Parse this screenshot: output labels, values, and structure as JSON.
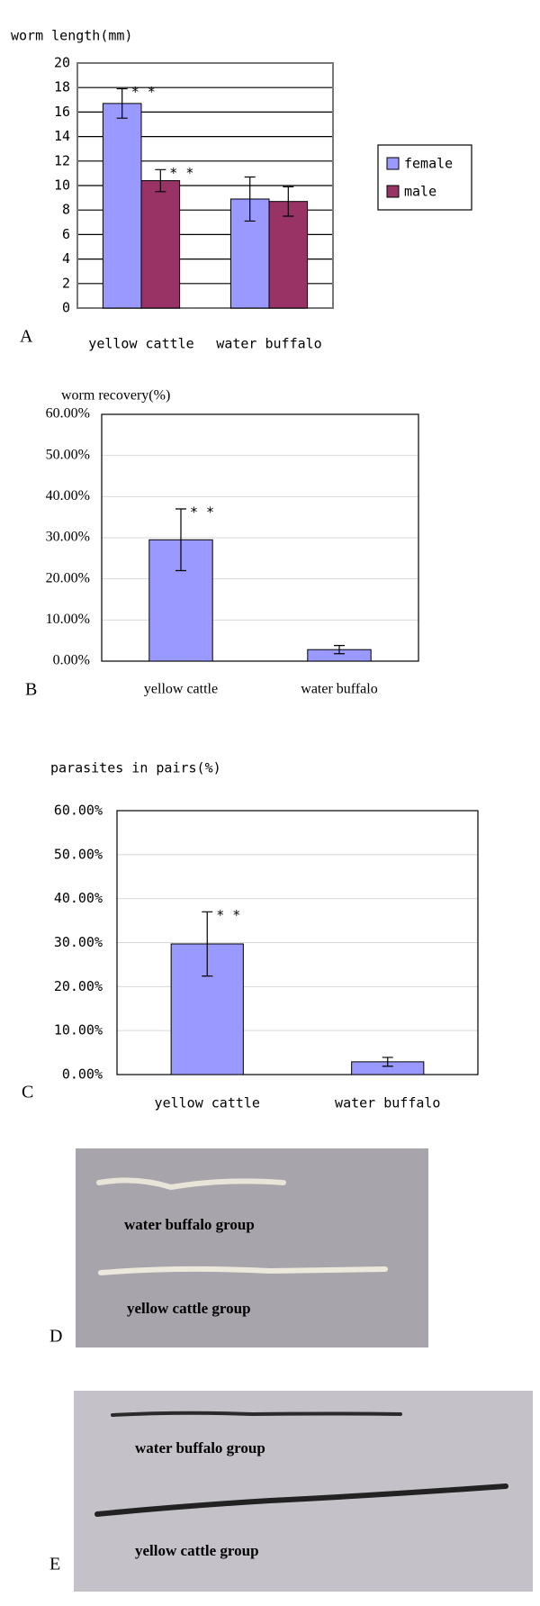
{
  "chart_data": [
    {
      "type": "bar",
      "panel": "A",
      "title": "worm length(mm)",
      "categories": [
        "yellow cattle",
        "water buffalo"
      ],
      "series": [
        {
          "name": "female",
          "color": "#9999ff",
          "values": [
            16.7,
            8.9
          ],
          "errors": [
            1.2,
            1.8
          ],
          "annotations": [
            "* *",
            null
          ]
        },
        {
          "name": "male",
          "color": "#993366",
          "values": [
            10.4,
            8.7
          ],
          "errors": [
            0.9,
            1.2
          ],
          "annotations": [
            "* *",
            null
          ]
        }
      ],
      "ylim": [
        0,
        20
      ],
      "yticks": [
        0,
        2,
        4,
        6,
        8,
        10,
        12,
        14,
        16,
        18,
        20
      ],
      "grid": true,
      "legend": "right"
    },
    {
      "type": "bar",
      "panel": "B",
      "title": "worm recovery(%)",
      "categories": [
        "yellow cattle",
        "water buffalo"
      ],
      "values": [
        29.5,
        2.8
      ],
      "errors": [
        7.5,
        1.0
      ],
      "annotations": [
        "* *",
        null
      ],
      "color": "#9999ff",
      "ylim": [
        0,
        60
      ],
      "yticks": [
        {
          "value": 0,
          "label": "0.00%"
        },
        {
          "value": 10,
          "label": "10.00%"
        },
        {
          "value": 20,
          "label": "20.00%"
        },
        {
          "value": 30,
          "label": "30.00%"
        },
        {
          "value": 40,
          "label": "40.00%"
        },
        {
          "value": 50,
          "label": "50.00%"
        },
        {
          "value": 60,
          "label": "60.00%"
        }
      ],
      "grid": true
    },
    {
      "type": "bar",
      "panel": "C",
      "title": "parasites in pairs(%)",
      "categories": [
        "yellow cattle",
        "water buffalo"
      ],
      "values": [
        29.7,
        2.9
      ],
      "errors": [
        7.3,
        1.0
      ],
      "annotations": [
        "* *",
        null
      ],
      "color": "#9999ff",
      "ylim": [
        0,
        60
      ],
      "yticks": [
        {
          "value": 0,
          "label": "0.00%"
        },
        {
          "value": 10,
          "label": "10.00%"
        },
        {
          "value": 20,
          "label": "20.00%"
        },
        {
          "value": 30,
          "label": "30.00%"
        },
        {
          "value": 40,
          "label": "40.00%"
        },
        {
          "value": 50,
          "label": "50.00%"
        },
        {
          "value": 60,
          "label": "60.00%"
        }
      ],
      "grid": true
    }
  ],
  "photos": [
    {
      "panel": "D",
      "labels": [
        "water buffalo group",
        "yellow cattle group"
      ]
    },
    {
      "panel": "E",
      "labels": [
        "water buffalo group",
        "yellow cattle group"
      ]
    }
  ]
}
